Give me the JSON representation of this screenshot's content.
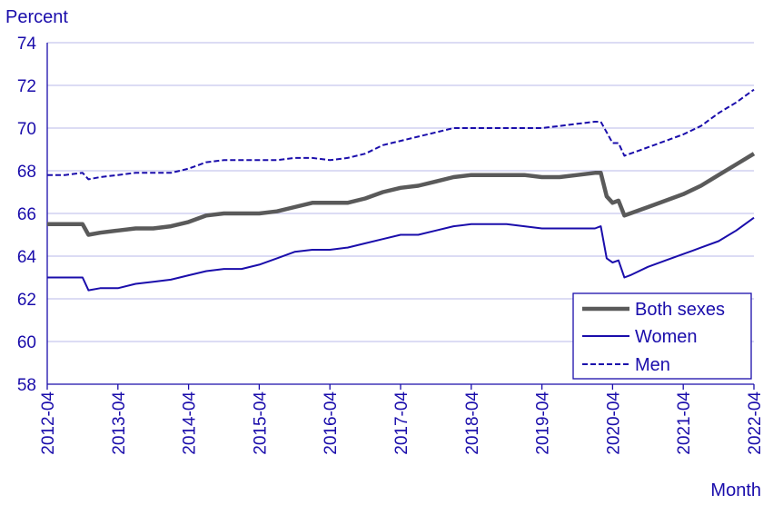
{
  "chart_data": {
    "type": "line",
    "ylabel": "Percent",
    "xlabel": "Month",
    "ylim": [
      58,
      74
    ],
    "yticks": [
      58,
      60,
      62,
      64,
      66,
      68,
      70,
      72,
      74
    ],
    "xticks": [
      "2012-04",
      "2013-04",
      "2014-04",
      "2015-04",
      "2016-04",
      "2017-04",
      "2018-04",
      "2019-04",
      "2020-04",
      "2021-04",
      "2022-04"
    ],
    "grid": "horizontal",
    "legend_position": "bottom-right",
    "series": [
      {
        "name": "Both sexes",
        "color": "#5a5a5a",
        "style": "solid-thick",
        "points": [
          [
            "2012-04",
            65.5
          ],
          [
            "2012-07",
            65.5
          ],
          [
            "2012-10",
            65.5
          ],
          [
            "2012-11",
            65.0
          ],
          [
            "2013-01",
            65.1
          ],
          [
            "2013-04",
            65.2
          ],
          [
            "2013-07",
            65.3
          ],
          [
            "2013-10",
            65.3
          ],
          [
            "2014-01",
            65.4
          ],
          [
            "2014-04",
            65.6
          ],
          [
            "2014-07",
            65.9
          ],
          [
            "2014-10",
            66.0
          ],
          [
            "2015-01",
            66.0
          ],
          [
            "2015-04",
            66.0
          ],
          [
            "2015-07",
            66.1
          ],
          [
            "2015-10",
            66.3
          ],
          [
            "2016-01",
            66.5
          ],
          [
            "2016-04",
            66.5
          ],
          [
            "2016-07",
            66.5
          ],
          [
            "2016-10",
            66.7
          ],
          [
            "2017-01",
            67.0
          ],
          [
            "2017-04",
            67.2
          ],
          [
            "2017-07",
            67.3
          ],
          [
            "2017-10",
            67.5
          ],
          [
            "2018-01",
            67.7
          ],
          [
            "2018-04",
            67.8
          ],
          [
            "2018-07",
            67.8
          ],
          [
            "2018-10",
            67.8
          ],
          [
            "2019-01",
            67.8
          ],
          [
            "2019-04",
            67.7
          ],
          [
            "2019-07",
            67.7
          ],
          [
            "2019-10",
            67.8
          ],
          [
            "2020-01",
            67.9
          ],
          [
            "2020-02",
            67.9
          ],
          [
            "2020-03",
            66.8
          ],
          [
            "2020-04",
            66.5
          ],
          [
            "2020-05",
            66.6
          ],
          [
            "2020-06",
            65.9
          ],
          [
            "2020-07",
            66.0
          ],
          [
            "2020-10",
            66.3
          ],
          [
            "2021-01",
            66.6
          ],
          [
            "2021-04",
            66.9
          ],
          [
            "2021-07",
            67.3
          ],
          [
            "2021-10",
            67.8
          ],
          [
            "2022-01",
            68.3
          ],
          [
            "2022-04",
            68.8
          ]
        ]
      },
      {
        "name": "Women",
        "color": "#1a0dab",
        "style": "solid",
        "points": [
          [
            "2012-04",
            63.0
          ],
          [
            "2012-07",
            63.0
          ],
          [
            "2012-10",
            63.0
          ],
          [
            "2012-11",
            62.4
          ],
          [
            "2013-01",
            62.5
          ],
          [
            "2013-04",
            62.5
          ],
          [
            "2013-07",
            62.7
          ],
          [
            "2013-10",
            62.8
          ],
          [
            "2014-01",
            62.9
          ],
          [
            "2014-04",
            63.1
          ],
          [
            "2014-07",
            63.3
          ],
          [
            "2014-10",
            63.4
          ],
          [
            "2015-01",
            63.4
          ],
          [
            "2015-04",
            63.6
          ],
          [
            "2015-07",
            63.9
          ],
          [
            "2015-10",
            64.2
          ],
          [
            "2016-01",
            64.3
          ],
          [
            "2016-04",
            64.3
          ],
          [
            "2016-07",
            64.4
          ],
          [
            "2016-10",
            64.6
          ],
          [
            "2017-01",
            64.8
          ],
          [
            "2017-04",
            65.0
          ],
          [
            "2017-07",
            65.0
          ],
          [
            "2017-10",
            65.2
          ],
          [
            "2018-01",
            65.4
          ],
          [
            "2018-04",
            65.5
          ],
          [
            "2018-07",
            65.5
          ],
          [
            "2018-10",
            65.5
          ],
          [
            "2019-01",
            65.4
          ],
          [
            "2019-04",
            65.3
          ],
          [
            "2019-07",
            65.3
          ],
          [
            "2019-10",
            65.3
          ],
          [
            "2020-01",
            65.3
          ],
          [
            "2020-02",
            65.4
          ],
          [
            "2020-03",
            63.9
          ],
          [
            "2020-04",
            63.7
          ],
          [
            "2020-05",
            63.8
          ],
          [
            "2020-06",
            63.0
          ],
          [
            "2020-07",
            63.1
          ],
          [
            "2020-10",
            63.5
          ],
          [
            "2021-01",
            63.8
          ],
          [
            "2021-04",
            64.1
          ],
          [
            "2021-07",
            64.4
          ],
          [
            "2021-10",
            64.7
          ],
          [
            "2022-01",
            65.2
          ],
          [
            "2022-04",
            65.8
          ]
        ]
      },
      {
        "name": "Men",
        "color": "#1a0dab",
        "style": "dashed",
        "points": [
          [
            "2012-04",
            67.8
          ],
          [
            "2012-07",
            67.8
          ],
          [
            "2012-10",
            67.9
          ],
          [
            "2012-11",
            67.6
          ],
          [
            "2013-01",
            67.7
          ],
          [
            "2013-04",
            67.8
          ],
          [
            "2013-07",
            67.9
          ],
          [
            "2013-10",
            67.9
          ],
          [
            "2014-01",
            67.9
          ],
          [
            "2014-04",
            68.1
          ],
          [
            "2014-07",
            68.4
          ],
          [
            "2014-10",
            68.5
          ],
          [
            "2015-01",
            68.5
          ],
          [
            "2015-04",
            68.5
          ],
          [
            "2015-07",
            68.5
          ],
          [
            "2015-10",
            68.6
          ],
          [
            "2016-01",
            68.6
          ],
          [
            "2016-04",
            68.5
          ],
          [
            "2016-07",
            68.6
          ],
          [
            "2016-10",
            68.8
          ],
          [
            "2017-01",
            69.2
          ],
          [
            "2017-04",
            69.4
          ],
          [
            "2017-07",
            69.6
          ],
          [
            "2017-10",
            69.8
          ],
          [
            "2018-01",
            70.0
          ],
          [
            "2018-04",
            70.0
          ],
          [
            "2018-07",
            70.0
          ],
          [
            "2018-10",
            70.0
          ],
          [
            "2019-01",
            70.0
          ],
          [
            "2019-04",
            70.0
          ],
          [
            "2019-07",
            70.1
          ],
          [
            "2019-10",
            70.2
          ],
          [
            "2020-01",
            70.3
          ],
          [
            "2020-02",
            70.3
          ],
          [
            "2020-03",
            69.8
          ],
          [
            "2020-04",
            69.3
          ],
          [
            "2020-05",
            69.3
          ],
          [
            "2020-06",
            68.7
          ],
          [
            "2020-07",
            68.8
          ],
          [
            "2020-10",
            69.1
          ],
          [
            "2021-01",
            69.4
          ],
          [
            "2021-04",
            69.7
          ],
          [
            "2021-07",
            70.1
          ],
          [
            "2021-10",
            70.7
          ],
          [
            "2022-01",
            71.2
          ],
          [
            "2022-04",
            71.8
          ]
        ]
      }
    ]
  }
}
